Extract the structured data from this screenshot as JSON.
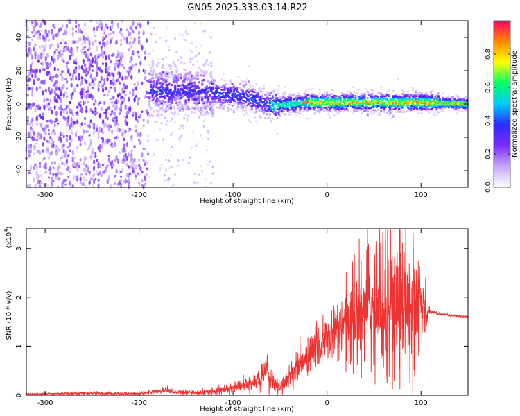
{
  "title": "GN05.2025.333.03.14.R22",
  "chart_data": [
    {
      "type": "heatmap",
      "xlabel": "Height of straight line (km)",
      "ylabel": "Frequency (Hz)",
      "xlim": [
        -320,
        150
      ],
      "ylim": [
        -50,
        50
      ],
      "xticks": [
        -300,
        -200,
        -100,
        0,
        100
      ],
      "yticks": [
        -40,
        -20,
        0,
        20,
        40
      ],
      "colorbar": {
        "label": "Normalized spectral amplitude",
        "range": [
          0,
          1
        ],
        "ticks": [
          0.0,
          0.2,
          0.4,
          0.6,
          0.8
        ],
        "colormap": [
          "#ffffff",
          "#c6a6ff",
          "#7c2cff",
          "#2b2bff",
          "#00ccff",
          "#00ff66",
          "#ffff00",
          "#ff8800",
          "#ff0066"
        ]
      },
      "trend": {
        "x": [
          -190,
          -150,
          -120,
          -95,
          -80,
          -65,
          -55,
          -40,
          -20,
          0,
          50,
          100,
          150
        ],
        "center_freq": [
          8,
          8,
          6,
          5,
          3,
          0,
          -1,
          0,
          1,
          1,
          1,
          1,
          0
        ]
      },
      "grid": false
    },
    {
      "type": "line",
      "xlabel": "Height of straight line (km)",
      "ylabel": "SNR (10 * v/v)",
      "scale_note": "(x10",
      "scale_exp": "4",
      "xlim": [
        -320,
        150
      ],
      "ylim": [
        0,
        3.4
      ],
      "xticks": [
        -300,
        -200,
        -100,
        0,
        100
      ],
      "yticks": [
        0,
        1,
        2,
        3
      ],
      "line_color": "#ee3333",
      "envelope": {
        "x": [
          -320,
          -250,
          -200,
          -180,
          -170,
          -160,
          -140,
          -120,
          -100,
          -80,
          -70,
          -65,
          -55,
          -50,
          -40,
          -30,
          -20,
          -10,
          0,
          10,
          20,
          30,
          40,
          50,
          60,
          70,
          80,
          90,
          100,
          110,
          120,
          150
        ],
        "mean": [
          0.02,
          0.04,
          0.03,
          0.08,
          0.12,
          0.06,
          0.05,
          0.07,
          0.15,
          0.25,
          0.35,
          0.5,
          0.2,
          0.15,
          0.4,
          0.6,
          0.8,
          1.0,
          1.15,
          1.3,
          1.45,
          1.6,
          1.7,
          1.75,
          1.8,
          1.85,
          1.8,
          1.75,
          1.7,
          1.7,
          1.65,
          1.6
        ],
        "spread": [
          0.02,
          0.03,
          0.03,
          0.05,
          0.08,
          0.05,
          0.05,
          0.08,
          0.12,
          0.15,
          0.2,
          0.3,
          0.15,
          0.12,
          0.25,
          0.3,
          0.35,
          0.4,
          0.45,
          0.55,
          0.65,
          0.75,
          0.85,
          0.9,
          1.0,
          1.1,
          1.1,
          1.1,
          0.9,
          0.05,
          0.02,
          0.02
        ]
      },
      "grid": false
    }
  ]
}
